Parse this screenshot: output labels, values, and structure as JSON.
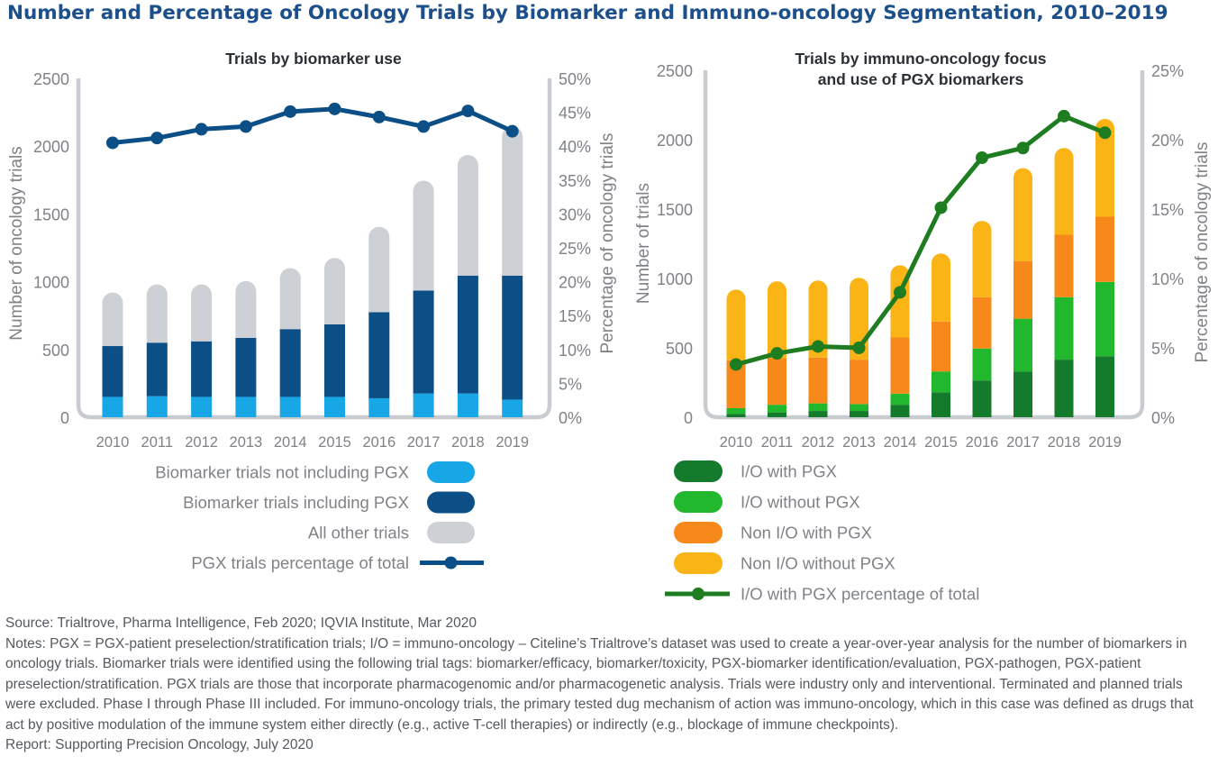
{
  "title": "Number and Percentage of Oncology Trials by Biomarker and Immuno-oncology Segmentation, 2010–2019",
  "colors": {
    "light_blue": "#18a7e6",
    "dark_blue": "#0b4f86",
    "gray": "#cdd1d5",
    "dark_green": "#147a2c",
    "green": "#22b82d",
    "orange": "#f7891a",
    "yellow": "#fbb416",
    "line_green": "#1f7d21",
    "axis": "#c8ccd0"
  },
  "chart_data": [
    {
      "type": "bar",
      "title": "Trials by biomarker use",
      "ylabel": "Number of oncology trials",
      "y2label": "Percentage of oncology trials",
      "ylim": [
        0,
        2500
      ],
      "y2lim": [
        0,
        50
      ],
      "y_ticks": [
        "0",
        "500",
        "1000",
        "1500",
        "2000",
        "2500"
      ],
      "y2_ticks": [
        "0%",
        "5%",
        "10%",
        "15%",
        "20%",
        "25%",
        "30%",
        "35%",
        "40%",
        "45%",
        "50%"
      ],
      "categories": [
        "2010",
        "2011",
        "2012",
        "2013",
        "2014",
        "2015",
        "2016",
        "2017",
        "2018",
        "2019"
      ],
      "stacked": true,
      "series": [
        {
          "name": "Biomarker trials not including PGX",
          "color": "#18a7e6",
          "values": [
            150,
            155,
            150,
            150,
            150,
            150,
            140,
            175,
            175,
            130
          ]
        },
        {
          "name": "Biomarker trials including PGX",
          "color": "#0b4f86",
          "values": [
            375,
            395,
            410,
            435,
            500,
            535,
            635,
            760,
            870,
            915
          ]
        },
        {
          "name": "All other trials",
          "color": "#cdd1d5",
          "values": [
            395,
            430,
            420,
            420,
            450,
            490,
            630,
            810,
            890,
            1100
          ]
        }
      ],
      "line": {
        "name": "PGX trials percentage of total",
        "color": "#0b4f86",
        "values": [
          40.5,
          41.2,
          42.5,
          42.9,
          45.1,
          45.5,
          44.3,
          42.9,
          45.2,
          42.2
        ]
      },
      "legend": [
        "Biomarker trials not including PGX",
        "Biomarker trials including PGX",
        "All other trials",
        "PGX trials percentage of total"
      ]
    },
    {
      "type": "bar",
      "title": "Trials by immuno-oncology focus",
      "title2": "and use of PGX biomarkers",
      "ylabel": "Number of trials",
      "y2label": "Percentage of oncology trials",
      "ylim": [
        0,
        2500
      ],
      "y2lim": [
        0,
        25
      ],
      "y_ticks": [
        "0",
        "500",
        "1000",
        "1500",
        "2000",
        "2500"
      ],
      "y2_ticks": [
        "0%",
        "5%",
        "10%",
        "15%",
        "20%",
        "25%"
      ],
      "categories": [
        "2010",
        "2011",
        "2012",
        "2013",
        "2014",
        "2015",
        "2016",
        "2017",
        "2018",
        "2019"
      ],
      "stacked": true,
      "series": [
        {
          "name": "I/O with PGX",
          "color": "#147a2c",
          "values": [
            25,
            35,
            45,
            45,
            90,
            180,
            265,
            330,
            415,
            440
          ]
        },
        {
          "name": "I/O without PGX",
          "color": "#22b82d",
          "values": [
            40,
            55,
            55,
            50,
            80,
            150,
            230,
            380,
            450,
            535
          ]
        },
        {
          "name": "Non I/O with PGX",
          "color": "#f7891a",
          "values": [
            345,
            335,
            330,
            320,
            405,
            360,
            370,
            415,
            450,
            470
          ]
        },
        {
          "name": "Non I/O without PGX",
          "color": "#fbb416",
          "values": [
            510,
            555,
            555,
            590,
            520,
            490,
            550,
            670,
            625,
            705
          ]
        }
      ],
      "line": {
        "name": "I/O with PGX percentage of total",
        "color": "#1f7d21",
        "values": [
          3.8,
          4.6,
          5.1,
          5.0,
          9.0,
          15.1,
          18.7,
          19.4,
          21.7,
          20.5
        ]
      },
      "legend": [
        "I/O with PGX",
        "I/O without PGX",
        "Non I/O with PGX",
        "Non I/O without PGX",
        "I/O with PGX percentage of total"
      ]
    }
  ],
  "footer": {
    "source": "Source: Trialtrove, Pharma Intelligence, Feb 2020; IQVIA Institute, Mar 2020",
    "notes": "Notes: PGX = PGX-patient preselection/stratification trials; I/O = immuno-oncology – Citeline’s Trialtrove’s dataset was used to create a year-over-year analysis for the number of biomarkers in oncology trials. Biomarker trials were identified using the following trial tags: biomarker/efficacy, biomarker/toxicity, PGX-biomarker identification/evaluation, PGX-pathogen, PGX-patient preselection/stratification. PGX trials are those that incorporate pharmacogenomic and/or pharmacogenetic analysis. Trials were industry only and interventional. Terminated and planned trials were excluded. Phase I through Phase III included. For immuno-oncology trials, the primary tested dug mechanism of action was immuno-oncology, which in this case was defined as drugs that act by positive modulation of the immune system either directly (e.g., active T-cell therapies) or indirectly (e.g., blockage of immune checkpoints).",
    "report": "Report: Supporting Precision Oncology, July 2020"
  }
}
